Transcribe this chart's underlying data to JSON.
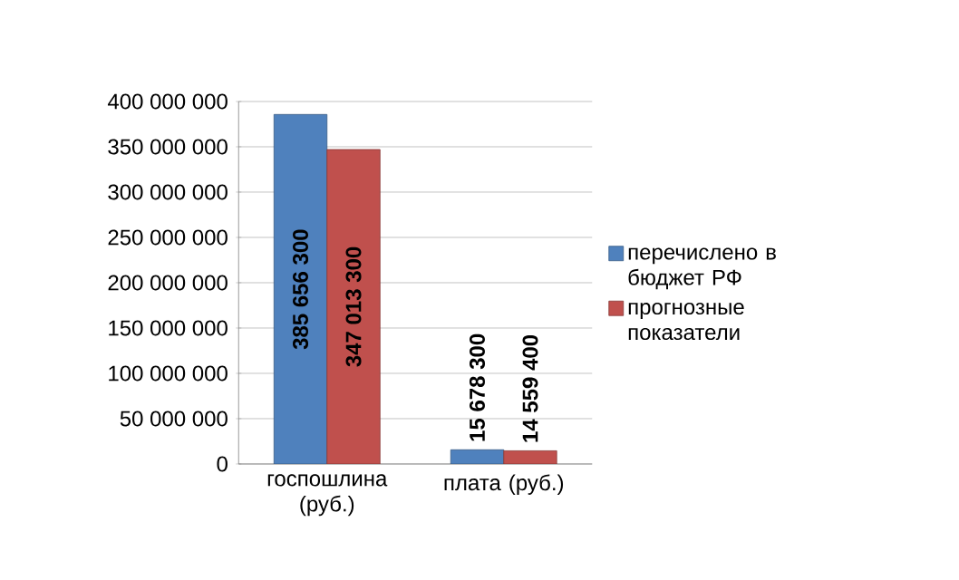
{
  "chart_data": {
    "type": "bar",
    "categories": [
      "госпошлина (руб.)",
      "плата (руб.)"
    ],
    "series": [
      {
        "name": "перечислено в бюджет РФ",
        "color": "#4f81bd",
        "values": [
          385656300,
          15678300
        ],
        "value_labels": [
          "385 656 300",
          "15 678 300"
        ]
      },
      {
        "name": "прогнозные показатели",
        "color": "#c0504d",
        "values": [
          347013300,
          14559400
        ],
        "value_labels": [
          "347 013 300",
          "14 559 400"
        ]
      }
    ],
    "ylim": [
      0,
      400000000
    ],
    "yticks": [
      0,
      {
        "value": 50000000,
        "label": "50 000 000"
      },
      {
        "value": 100000000,
        "label": "100 000 000"
      },
      {
        "value": 150000000,
        "label": "150 000 000"
      },
      {
        "value": 200000000,
        "label": "200 000 000"
      },
      {
        "value": 250000000,
        "label": "250 000 000"
      },
      {
        "value": 300000000,
        "label": "300 000 000"
      },
      {
        "value": 350000000,
        "label": "350 000 000"
      },
      {
        "value": 400000000,
        "label": "400 000 000"
      }
    ],
    "grid": "y",
    "legend": "right"
  }
}
